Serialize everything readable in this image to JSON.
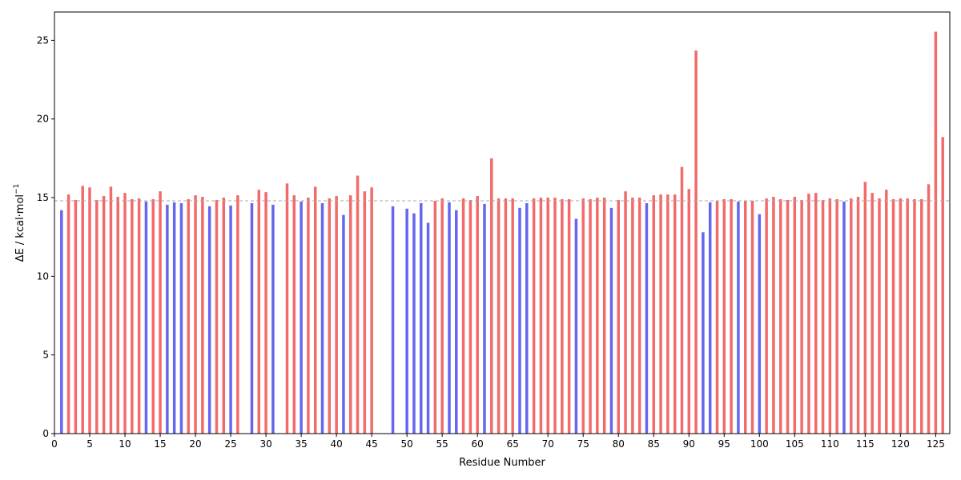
{
  "chart_data": {
    "type": "bar",
    "xlabel": "Residue Number",
    "ylabel_main": "ΔE / kcal·mol",
    "ylabel_sup": "−1",
    "xlim": [
      0,
      127
    ],
    "ylim": [
      0,
      26.8
    ],
    "xticks": [
      0,
      5,
      10,
      15,
      20,
      25,
      30,
      35,
      40,
      45,
      50,
      55,
      60,
      65,
      70,
      75,
      80,
      85,
      90,
      95,
      100,
      105,
      110,
      115,
      120,
      125
    ],
    "yticks": [
      0,
      5,
      10,
      15,
      20,
      25
    ],
    "reference_line": 14.8,
    "colors": {
      "above": "#f26b6b",
      "below": "#6666ee",
      "reference": "#aaaaaa"
    },
    "series": [
      {
        "name": "",
        "points": [
          {
            "x": 1,
            "y": 14.2
          },
          {
            "x": 2,
            "y": 15.2
          },
          {
            "x": 3,
            "y": 14.85
          },
          {
            "x": 4,
            "y": 15.75
          },
          {
            "x": 5,
            "y": 15.65
          },
          {
            "x": 6,
            "y": 14.85
          },
          {
            "x": 7,
            "y": 15.1
          },
          {
            "x": 8,
            "y": 15.7
          },
          {
            "x": 9,
            "y": 15.05
          },
          {
            "x": 10,
            "y": 15.3
          },
          {
            "x": 11,
            "y": 14.9
          },
          {
            "x": 12,
            "y": 14.95
          },
          {
            "x": 13,
            "y": 14.75
          },
          {
            "x": 14,
            "y": 14.9
          },
          {
            "x": 15,
            "y": 15.4
          },
          {
            "x": 16,
            "y": 14.55
          },
          {
            "x": 17,
            "y": 14.7
          },
          {
            "x": 18,
            "y": 14.65
          },
          {
            "x": 19,
            "y": 14.9
          },
          {
            "x": 20,
            "y": 15.15
          },
          {
            "x": 21,
            "y": 15.05
          },
          {
            "x": 22,
            "y": 14.45
          },
          {
            "x": 23,
            "y": 14.85
          },
          {
            "x": 24,
            "y": 15.0
          },
          {
            "x": 25,
            "y": 14.5
          },
          {
            "x": 26,
            "y": 15.15
          },
          {
            "x": 28,
            "y": 14.65
          },
          {
            "x": 29,
            "y": 15.5
          },
          {
            "x": 30,
            "y": 15.35
          },
          {
            "x": 31,
            "y": 14.55
          },
          {
            "x": 33,
            "y": 15.9
          },
          {
            "x": 34,
            "y": 15.15
          },
          {
            "x": 35,
            "y": 14.75
          },
          {
            "x": 36,
            "y": 15.0
          },
          {
            "x": 37,
            "y": 15.7
          },
          {
            "x": 38,
            "y": 14.65
          },
          {
            "x": 39,
            "y": 14.95
          },
          {
            "x": 40,
            "y": 15.1
          },
          {
            "x": 41,
            "y": 13.9
          },
          {
            "x": 42,
            "y": 15.15
          },
          {
            "x": 43,
            "y": 16.4
          },
          {
            "x": 44,
            "y": 15.4
          },
          {
            "x": 45,
            "y": 15.65
          },
          {
            "x": 48,
            "y": 14.45
          },
          {
            "x": 50,
            "y": 14.3
          },
          {
            "x": 51,
            "y": 14.0
          },
          {
            "x": 52,
            "y": 14.65
          },
          {
            "x": 53,
            "y": 13.4
          },
          {
            "x": 54,
            "y": 14.8
          },
          {
            "x": 55,
            "y": 14.95
          },
          {
            "x": 56,
            "y": 14.7
          },
          {
            "x": 57,
            "y": 14.2
          },
          {
            "x": 58,
            "y": 14.95
          },
          {
            "x": 59,
            "y": 14.85
          },
          {
            "x": 60,
            "y": 15.1
          },
          {
            "x": 61,
            "y": 14.6
          },
          {
            "x": 62,
            "y": 17.5
          },
          {
            "x": 63,
            "y": 14.95
          },
          {
            "x": 64,
            "y": 14.95
          },
          {
            "x": 65,
            "y": 14.95
          },
          {
            "x": 66,
            "y": 14.35
          },
          {
            "x": 67,
            "y": 14.65
          },
          {
            "x": 68,
            "y": 14.95
          },
          {
            "x": 69,
            "y": 15.0
          },
          {
            "x": 70,
            "y": 15.0
          },
          {
            "x": 71,
            "y": 15.0
          },
          {
            "x": 72,
            "y": 14.9
          },
          {
            "x": 73,
            "y": 14.9
          },
          {
            "x": 74,
            "y": 13.65
          },
          {
            "x": 75,
            "y": 14.95
          },
          {
            "x": 76,
            "y": 14.9
          },
          {
            "x": 77,
            "y": 15.0
          },
          {
            "x": 78,
            "y": 15.0
          },
          {
            "x": 79,
            "y": 14.35
          },
          {
            "x": 80,
            "y": 14.85
          },
          {
            "x": 81,
            "y": 15.4
          },
          {
            "x": 82,
            "y": 15.0
          },
          {
            "x": 83,
            "y": 15.0
          },
          {
            "x": 84,
            "y": 14.65
          },
          {
            "x": 85,
            "y": 15.15
          },
          {
            "x": 86,
            "y": 15.2
          },
          {
            "x": 87,
            "y": 15.2
          },
          {
            "x": 88,
            "y": 15.2
          },
          {
            "x": 89,
            "y": 16.95
          },
          {
            "x": 90,
            "y": 15.55
          },
          {
            "x": 91,
            "y": 24.35
          },
          {
            "x": 92,
            "y": 12.8
          },
          {
            "x": 93,
            "y": 14.7
          },
          {
            "x": 94,
            "y": 14.8
          },
          {
            "x": 95,
            "y": 14.9
          },
          {
            "x": 96,
            "y": 14.9
          },
          {
            "x": 97,
            "y": 14.75
          },
          {
            "x": 98,
            "y": 14.8
          },
          {
            "x": 99,
            "y": 14.8
          },
          {
            "x": 100,
            "y": 13.95
          },
          {
            "x": 101,
            "y": 14.95
          },
          {
            "x": 102,
            "y": 15.05
          },
          {
            "x": 103,
            "y": 14.9
          },
          {
            "x": 104,
            "y": 14.85
          },
          {
            "x": 105,
            "y": 15.05
          },
          {
            "x": 106,
            "y": 14.85
          },
          {
            "x": 107,
            "y": 15.25
          },
          {
            "x": 108,
            "y": 15.3
          },
          {
            "x": 109,
            "y": 14.85
          },
          {
            "x": 110,
            "y": 14.95
          },
          {
            "x": 111,
            "y": 14.9
          },
          {
            "x": 112,
            "y": 14.75
          },
          {
            "x": 113,
            "y": 14.95
          },
          {
            "x": 114,
            "y": 15.05
          },
          {
            "x": 115,
            "y": 16.0
          },
          {
            "x": 116,
            "y": 15.3
          },
          {
            "x": 117,
            "y": 14.95
          },
          {
            "x": 118,
            "y": 15.5
          },
          {
            "x": 119,
            "y": 14.9
          },
          {
            "x": 120,
            "y": 14.95
          },
          {
            "x": 121,
            "y": 14.95
          },
          {
            "x": 122,
            "y": 14.9
          },
          {
            "x": 123,
            "y": 14.9
          },
          {
            "x": 124,
            "y": 15.85
          },
          {
            "x": 125,
            "y": 25.55
          },
          {
            "x": 126,
            "y": 18.85
          }
        ]
      }
    ],
    "grid": false,
    "legend": "none"
  }
}
